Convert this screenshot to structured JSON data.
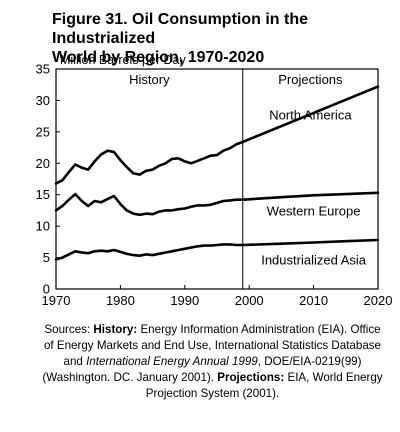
{
  "chart_data": {
    "type": "line",
    "title": "Figure 31.  Oil Consumption in the Industrialized\nWorld by Region, 1970-2020",
    "ylabel": "Million Barrels per Day",
    "xlim": [
      1970,
      2020
    ],
    "ylim": [
      0,
      35
    ],
    "x_ticks": [
      "1970",
      "1980",
      "1990",
      "2000",
      "2010",
      "2020"
    ],
    "y_ticks": [
      "0",
      "5",
      "10",
      "15",
      "20",
      "25",
      "30",
      "35"
    ],
    "grid": false,
    "divider_year": 1999,
    "section_labels": {
      "history": "History",
      "projections": "Projections"
    },
    "series": [
      {
        "name": "North America",
        "x": [
          1970,
          1971,
          1972,
          1973,
          1974,
          1975,
          1976,
          1977,
          1978,
          1979,
          1980,
          1981,
          1982,
          1983,
          1984,
          1985,
          1986,
          1987,
          1988,
          1989,
          1990,
          1991,
          1992,
          1993,
          1994,
          1995,
          1996,
          1997,
          1998,
          1999,
          2020
        ],
        "y": [
          16.8,
          17.3,
          18.6,
          19.8,
          19.3,
          19.0,
          20.3,
          21.4,
          22.0,
          21.8,
          20.5,
          19.4,
          18.4,
          18.2,
          18.8,
          19.0,
          19.6,
          20.0,
          20.7,
          20.8,
          20.3,
          20.0,
          20.4,
          20.8,
          21.2,
          21.3,
          22.0,
          22.4,
          23.0,
          23.4,
          32.2
        ]
      },
      {
        "name": "Western Europe",
        "x": [
          1970,
          1971,
          1972,
          1973,
          1974,
          1975,
          1976,
          1977,
          1978,
          1979,
          1980,
          1981,
          1982,
          1983,
          1984,
          1985,
          1986,
          1987,
          1988,
          1989,
          1990,
          1991,
          1992,
          1993,
          1994,
          1995,
          1996,
          1997,
          1998,
          1999,
          2005,
          2010,
          2015,
          2020
        ],
        "y": [
          12.5,
          13.2,
          14.2,
          15.1,
          14.0,
          13.2,
          14.0,
          13.8,
          14.3,
          14.8,
          13.5,
          12.5,
          12.0,
          11.8,
          12.0,
          11.9,
          12.3,
          12.5,
          12.5,
          12.7,
          12.8,
          13.1,
          13.3,
          13.3,
          13.4,
          13.7,
          14.0,
          14.1,
          14.2,
          14.2,
          14.6,
          14.9,
          15.1,
          15.3
        ]
      },
      {
        "name": "Industrialized Asia",
        "x": [
          1970,
          1971,
          1972,
          1973,
          1974,
          1975,
          1976,
          1977,
          1978,
          1979,
          1980,
          1981,
          1982,
          1983,
          1984,
          1985,
          1986,
          1987,
          1988,
          1989,
          1990,
          1991,
          1992,
          1993,
          1994,
          1995,
          1996,
          1997,
          1998,
          1999,
          2005,
          2010,
          2015,
          2020
        ],
        "y": [
          4.7,
          5.0,
          5.5,
          6.0,
          5.8,
          5.7,
          6.0,
          6.1,
          6.0,
          6.2,
          5.9,
          5.6,
          5.4,
          5.3,
          5.5,
          5.4,
          5.6,
          5.8,
          6.0,
          6.2,
          6.4,
          6.6,
          6.8,
          6.9,
          6.9,
          7.0,
          7.1,
          7.1,
          7.0,
          7.0,
          7.2,
          7.4,
          7.6,
          7.8
        ]
      }
    ]
  },
  "sources": {
    "prefix": "Sources: ",
    "history_label": "History:",
    "text1": " Energy Information Administration (EIA). Office of Energy Markets and End Use, International Statistics Database and ",
    "italic_title": "International Energy Annual 1999",
    "text2": ", DOE/EIA-0219(99) (Washington. DC. January 2001). ",
    "projections_label": "Projections:",
    "text3": " EIA, World Energy Projection System (2001)."
  }
}
